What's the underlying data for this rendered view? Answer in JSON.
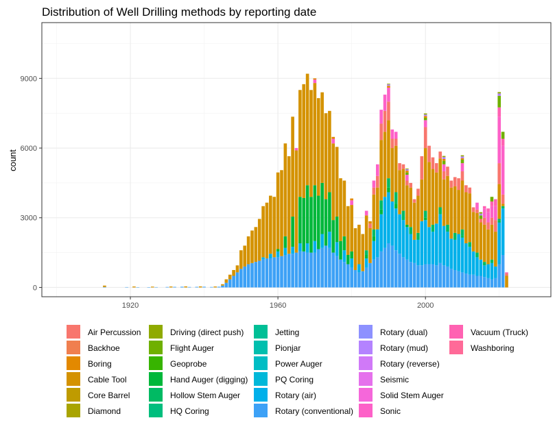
{
  "chart_data": {
    "type": "bar",
    "stacked": true,
    "title": "Distribution of Well Drilling methods by reporting date",
    "xlabel": "",
    "ylabel": "count",
    "xlim": [
      1896,
      2034
    ],
    "ylim": [
      -400,
      11400
    ],
    "x_ticks": [
      1920,
      1960,
      2000
    ],
    "y_ticks": [
      0,
      3000,
      6000,
      9000
    ],
    "grid": true,
    "legend_position": "bottom",
    "legend": [
      "Air Percussion",
      "Backhoe",
      "Boring",
      "Cable Tool",
      "Core Barrel",
      "Diamond",
      "Driving (direct push)",
      "Flight Auger",
      "Geoprobe",
      "Hand Auger (digging)",
      "Hollow Stem Auger",
      "HQ Coring",
      "Jetting",
      "Pionjar",
      "Power Auger",
      "PQ Coring",
      "Rotary (air)",
      "Rotary (conventional)",
      "Rotary (dual)",
      "Rotary (mud)",
      "Rotary (reverse)",
      "Seismic",
      "Solid Stem Auger",
      "Sonic",
      "Vacuum (Truck)",
      "Washboring"
    ],
    "colors": [
      "#F8766D",
      "#F07F4F",
      "#E38900",
      "#D49200",
      "#BF9B00",
      "#A9A400",
      "#8FAA00",
      "#6FB000",
      "#37B400",
      "#00B73A",
      "#00BA63",
      "#00BE7D",
      "#00BF96",
      "#00BFAE",
      "#00BDC4",
      "#00B8D9",
      "#00B0EA",
      "#3DA1F6",
      "#8D91FF",
      "#B483FF",
      "#D079F8",
      "#E571EC",
      "#F567DA",
      "#FD61C8",
      "#FF62B2",
      "#FF6A98"
    ],
    "series": [
      {
        "name": "Rotary (conventional)",
        "x": [
          1913,
          1919,
          1922,
          1925,
          1927,
          1930,
          1932,
          1934,
          1936,
          1938,
          1940,
          1942,
          1944,
          1945,
          1946,
          1947,
          1948,
          1949,
          1950,
          1951,
          1952,
          1953,
          1954,
          1955,
          1956,
          1957,
          1958,
          1959,
          1960,
          1961,
          1962,
          1963,
          1964,
          1965,
          1966,
          1967,
          1968,
          1969,
          1970,
          1971,
          1972,
          1973,
          1974,
          1975,
          1976,
          1977,
          1978,
          1979,
          1980,
          1981,
          1982,
          1983,
          1984,
          1985,
          1986,
          1987,
          1988,
          1989,
          1990,
          1991,
          1992,
          1993,
          1994,
          1995,
          1996,
          1997,
          1998,
          1999,
          2000,
          2001,
          2002,
          2003,
          2004,
          2005,
          2006,
          2007,
          2008,
          2009,
          2010,
          2011,
          2012,
          2013,
          2014,
          2015,
          2016,
          2017,
          2018,
          2019,
          2020,
          2021,
          2022
        ],
        "values": [
          20,
          15,
          10,
          12,
          15,
          20,
          25,
          30,
          20,
          25,
          30,
          20,
          30,
          80,
          200,
          350,
          500,
          650,
          800,
          900,
          1000,
          1050,
          1100,
          1150,
          1200,
          1250,
          1250,
          1300,
          1300,
          1350,
          1400,
          1450,
          1450,
          1500,
          1550,
          1550,
          1500,
          1500,
          1500,
          1650,
          1700,
          1800,
          1700,
          1500,
          1350,
          1200,
          1100,
          1000,
          850,
          750,
          650,
          700,
          850,
          1050,
          1200,
          1300,
          1550,
          1700,
          1900,
          1800,
          1600,
          1450,
          1300,
          1200,
          1100,
          1050,
          950,
          950,
          1000,
          1000,
          1000,
          950,
          1050,
          950,
          900,
          800,
          750,
          700,
          650,
          600,
          550,
          550,
          500,
          500,
          450,
          400,
          350,
          400,
          1000,
          1400,
          0
        ]
      },
      {
        "name": "Rotary (air)",
        "x": [
          1956,
          1958,
          1960,
          1962,
          1964,
          1966,
          1968,
          1970,
          1972,
          1974,
          1976,
          1978,
          1980,
          1982,
          1984,
          1986,
          1987,
          1988,
          1989,
          1990,
          1991,
          1992,
          1993,
          1994,
          1995,
          1996,
          1997,
          1998,
          1999,
          2000,
          2001,
          2002,
          2003,
          2004,
          2005,
          2006,
          2007,
          2008,
          2009,
          2010,
          2011,
          2012,
          2013,
          2014,
          2015,
          2016,
          2017,
          2018,
          2019,
          2020,
          2021
        ],
        "values": [
          100,
          200,
          250,
          300,
          300,
          350,
          400,
          500,
          600,
          700,
          600,
          500,
          400,
          350,
          400,
          800,
          1200,
          1600,
          2200,
          2200,
          1900,
          1800,
          1700,
          1600,
          1400,
          1200,
          1000,
          1100,
          1900,
          1900,
          1600,
          1400,
          1800,
          2100,
          1700,
          1500,
          1300,
          1300,
          1600,
          1500,
          1300,
          1200,
          1000,
          800,
          700,
          500,
          600,
          700,
          500,
          1800,
          2000
        ]
      },
      {
        "name": "Hand Auger (digging)",
        "x": [
          1960,
          1962,
          1964,
          1966,
          1967,
          1968,
          1969,
          1970,
          1971,
          1972,
          1973,
          1974,
          1975,
          1976,
          1977,
          1978,
          1979,
          1980,
          1984,
          1986,
          1988,
          1990,
          1992,
          1995,
          2000,
          2010,
          2020
        ],
        "values": [
          100,
          500,
          1300,
          2000,
          2300,
          2500,
          2400,
          2400,
          2300,
          2200,
          2000,
          1700,
          1400,
          1100,
          800,
          600,
          400,
          300,
          150,
          200,
          200,
          200,
          200,
          100,
          100,
          50,
          50
        ]
      },
      {
        "name": "Hollow Stem Auger",
        "x": [
          1984,
          1986,
          1988,
          1990,
          1992,
          1994,
          1996,
          1998,
          2000,
          2002,
          2004,
          2006,
          2008,
          2010,
          2012,
          2014,
          2016,
          2018,
          2020,
          2021
        ],
        "values": [
          200,
          300,
          400,
          400,
          500,
          400,
          300,
          300,
          300,
          300,
          300,
          300,
          300,
          300,
          200,
          200,
          150,
          150,
          100,
          100
        ]
      },
      {
        "name": "Cable Tool",
        "x": [
          1913,
          1921,
          1926,
          1931,
          1935,
          1939,
          1943,
          1945,
          1946,
          1947,
          1948,
          1949,
          1950,
          1951,
          1952,
          1953,
          1954,
          1955,
          1956,
          1957,
          1958,
          1959,
          1960,
          1961,
          1962,
          1963,
          1964,
          1965,
          1966,
          1967,
          1968,
          1969,
          1970,
          1971,
          1972,
          1973,
          1974,
          1975,
          1976,
          1977,
          1978,
          1979,
          1980,
          1981,
          1982,
          1983,
          1984,
          1985,
          1986,
          1987,
          1988,
          1989,
          1990,
          1991,
          1992,
          1993,
          1994,
          1995,
          1996,
          1997,
          1998,
          1999,
          2000,
          2001,
          2002,
          2003,
          2004,
          2005,
          2006,
          2007,
          2008,
          2009,
          2010,
          2011,
          2012,
          2013,
          2014,
          2015,
          2016,
          2017,
          2018,
          2019,
          2020,
          2021,
          2022
        ],
        "values": [
          60,
          40,
          35,
          40,
          45,
          45,
          40,
          60,
          150,
          200,
          250,
          300,
          800,
          900,
          1200,
          1400,
          1500,
          1800,
          2200,
          2400,
          2500,
          2600,
          3300,
          3700,
          4000,
          4200,
          4300,
          4400,
          4600,
          4900,
          4800,
          4600,
          4400,
          4200,
          3900,
          3700,
          3500,
          3300,
          3000,
          2700,
          2400,
          2100,
          2000,
          1800,
          1700,
          1600,
          1500,
          1500,
          1500,
          1800,
          2600,
          2800,
          2500,
          2300,
          2000,
          1900,
          1800,
          1700,
          1700,
          1600,
          1600,
          1800,
          2700,
          2800,
          2400,
          2200,
          2100,
          2000,
          2100,
          2200,
          2000,
          1900,
          2100,
          2200,
          2100,
          1700,
          1700,
          1600,
          1600,
          1500,
          1500,
          1500,
          1500,
          100,
          500
        ]
      },
      {
        "name": "Air Percussion",
        "x": [
          1985,
          1986,
          1987,
          1988,
          1989,
          1990,
          1991,
          1992,
          1993,
          1994,
          1995,
          1996,
          1997,
          1998,
          1999,
          2000,
          2001,
          2002,
          2003,
          2004,
          2005,
          2006,
          2007,
          2008,
          2009,
          2010,
          2011,
          2012,
          2013,
          2014,
          2015,
          2016,
          2017,
          2018,
          2019,
          2020,
          2021,
          2022
        ],
        "values": [
          200,
          300,
          500,
          700,
          900,
          800,
          400,
          300,
          300,
          200,
          200,
          200,
          150,
          300,
          1000,
          900,
          700,
          500,
          400,
          300,
          350,
          400,
          300,
          400,
          500,
          400,
          300,
          250,
          200,
          150,
          150,
          300,
          300,
          300,
          500,
          900,
          400,
          100
        ]
      },
      {
        "name": "Sonic",
        "x": [
          1965,
          1970,
          1975,
          1980,
          1984,
          1986,
          1987,
          1988,
          1989,
          1990,
          1991,
          1992,
          1995,
          2000,
          2005,
          2010,
          2014,
          2016,
          2017,
          2018,
          2019,
          2020,
          2021
        ],
        "values": [
          100,
          150,
          200,
          200,
          200,
          300,
          500,
          600,
          700,
          600,
          400,
          300,
          250,
          300,
          300,
          350,
          300,
          400,
          450,
          500,
          600,
          2000,
          2100
        ]
      },
      {
        "name": "Vacuum (Truck)",
        "x": [
          2016,
          2017,
          2018,
          2019,
          2020,
          2021,
          2022
        ],
        "values": [
          100,
          150,
          200,
          300,
          400,
          300,
          50
        ]
      },
      {
        "name": "Flight Auger",
        "x": [
          1995,
          2000,
          2005,
          2010,
          2015,
          2018,
          2020,
          2021
        ],
        "values": [
          100,
          100,
          150,
          150,
          150,
          200,
          500,
          300
        ]
      },
      {
        "name": "Boring",
        "x": [
          1970,
          1975,
          1980,
          1985,
          1990,
          1995,
          2000,
          2005,
          2010
        ],
        "values": [
          50,
          80,
          80,
          100,
          80,
          80,
          80,
          80,
          60
        ]
      },
      {
        "name": "Rotary (mud)",
        "x": [
          1990,
          1995,
          2000,
          2005,
          2010,
          2015,
          2020
        ],
        "values": [
          60,
          60,
          60,
          80,
          80,
          80,
          100
        ]
      },
      {
        "name": "Driving (direct push)",
        "x": [
          1990,
          1995,
          2000,
          2005,
          2010,
          2015,
          2020
        ],
        "values": [
          30,
          30,
          50,
          50,
          50,
          60,
          60
        ]
      }
    ]
  }
}
